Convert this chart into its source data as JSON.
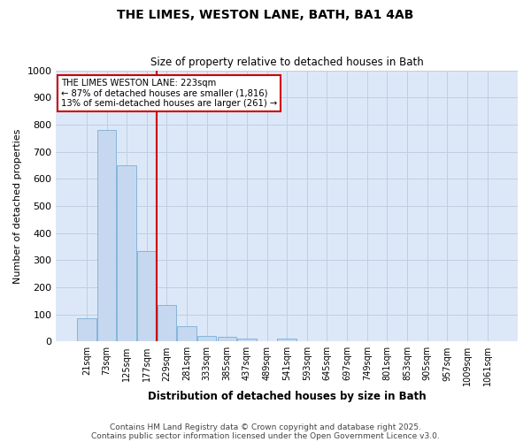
{
  "title1": "THE LIMES, WESTON LANE, BATH, BA1 4AB",
  "title2": "Size of property relative to detached houses in Bath",
  "xlabel": "Distribution of detached houses by size in Bath",
  "ylabel": "Number of detached properties",
  "bar_labels": [
    "21sqm",
    "73sqm",
    "125sqm",
    "177sqm",
    "229sqm",
    "281sqm",
    "333sqm",
    "385sqm",
    "437sqm",
    "489sqm",
    "541sqm",
    "593sqm",
    "645sqm",
    "697sqm",
    "749sqm",
    "801sqm",
    "853sqm",
    "905sqm",
    "957sqm",
    "1009sqm",
    "1061sqm"
  ],
  "bar_values": [
    85,
    780,
    650,
    335,
    135,
    58,
    22,
    18,
    10,
    0,
    10,
    0,
    0,
    0,
    0,
    0,
    0,
    0,
    0,
    0,
    0
  ],
  "bar_color": "#c5d8f0",
  "bar_edge_color": "#7aafd4",
  "grid_color": "#c0cfe0",
  "bg_color": "#dce8f8",
  "fig_bg_color": "#ffffff",
  "red_line_x": 3.5,
  "red_line_color": "#cc0000",
  "annotation_title": "THE LIMES WESTON LANE: 223sqm",
  "annotation_line1": "← 87% of detached houses are smaller (1,816)",
  "annotation_line2": "13% of semi-detached houses are larger (261) →",
  "annotation_box_color": "#cc0000",
  "annotation_bg": "#ffffff",
  "ylim": [
    0,
    1000
  ],
  "yticks": [
    0,
    100,
    200,
    300,
    400,
    500,
    600,
    700,
    800,
    900,
    1000
  ],
  "footer1": "Contains HM Land Registry data © Crown copyright and database right 2025.",
  "footer2": "Contains public sector information licensed under the Open Government Licence v3.0."
}
